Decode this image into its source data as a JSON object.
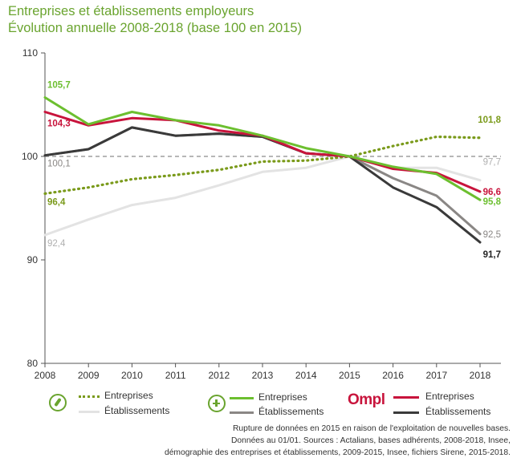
{
  "title_line1": "Entreprises et établissements employeurs",
  "title_line2": "Évolution annuelle 2008-2018 (base 100 en 2015)",
  "chart_data": {
    "type": "line",
    "x": [
      2008,
      2009,
      2010,
      2011,
      2012,
      2013,
      2014,
      2015,
      2016,
      2017,
      2018
    ],
    "xlim": [
      2008,
      2018
    ],
    "ylim": [
      80,
      110
    ],
    "yticks": [
      80,
      90,
      100,
      110
    ],
    "reference_line": 100,
    "series": [
      {
        "name": "Entreprises",
        "group": "group1",
        "color": "#7a9a1a",
        "style": "dotted",
        "values": [
          96.4,
          97.0,
          97.8,
          98.2,
          98.7,
          99.5,
          99.6,
          100,
          101.0,
          101.9,
          101.8
        ],
        "labels": [
          {
            "index": 0,
            "text": "96,4"
          },
          {
            "index": 10,
            "text": "101,8"
          }
        ]
      },
      {
        "name": "Établissements",
        "group": "group1",
        "color": "#e3e3e3",
        "style": "solid",
        "values": [
          92.4,
          93.9,
          95.3,
          96.0,
          97.2,
          98.5,
          98.9,
          100,
          98.9,
          98.9,
          97.7
        ],
        "labels": [
          {
            "index": 0,
            "text": "92,4"
          },
          {
            "index": 10,
            "text": "97,7"
          }
        ]
      },
      {
        "name": "Entreprises",
        "group": "group2",
        "color": "#6cbf2f",
        "style": "solid",
        "values": [
          105.7,
          103.1,
          104.3,
          103.5,
          103.0,
          102.0,
          100.8,
          100,
          99.0,
          98.3,
          95.8
        ],
        "labels": [
          {
            "index": 0,
            "text": "105,7"
          },
          {
            "index": 10,
            "text": "95,8"
          }
        ]
      },
      {
        "name": "Établissements",
        "group": "group2",
        "color": "#8a8785",
        "style": "solid",
        "values": [
          100.1,
          100.7,
          102.8,
          102.0,
          102.2,
          101.9,
          100.3,
          100,
          97.9,
          96.2,
          92.5
        ],
        "labels": [
          {
            "index": 0,
            "text": "100,1"
          },
          {
            "index": 10,
            "text": "92,5"
          }
        ]
      },
      {
        "name": "Entreprises",
        "group": "group3",
        "color": "#c8143c",
        "style": "solid",
        "values": [
          104.3,
          103.0,
          103.7,
          103.5,
          102.5,
          102.0,
          100.3,
          100,
          98.8,
          98.4,
          96.6
        ],
        "labels": [
          {
            "index": 0,
            "text": "104,3"
          },
          {
            "index": 10,
            "text": "96,6"
          }
        ]
      },
      {
        "name": "Établissements",
        "group": "group3",
        "color": "#3a3a3a",
        "style": "solid",
        "values": [
          100.1,
          100.7,
          102.8,
          102.0,
          102.2,
          101.9,
          100.3,
          100,
          97.0,
          95.1,
          91.7
        ],
        "labels": [
          {
            "index": 10,
            "text": "91,7"
          }
        ]
      }
    ]
  },
  "legend": {
    "logo_text": "Ompl",
    "group1": {
      "entreprises": "Entreprises",
      "etablissements": "Établissements"
    },
    "group2": {
      "entreprises": "Entreprises",
      "etablissements": "Établissements"
    },
    "group3": {
      "entreprises": "Entreprises",
      "etablissements": "Établissements"
    }
  },
  "source": {
    "line1": "Rupture de données en 2015 en raison de l'exploitation de nouvelles bases.",
    "line2": "Données au 01/01. Sources : Actalians, bases adhérents, 2008-2018, Insee,",
    "line3": "démographie des entreprises et établissements, 2009-2015, Insee, fichiers Sirene, 2015-2018."
  }
}
